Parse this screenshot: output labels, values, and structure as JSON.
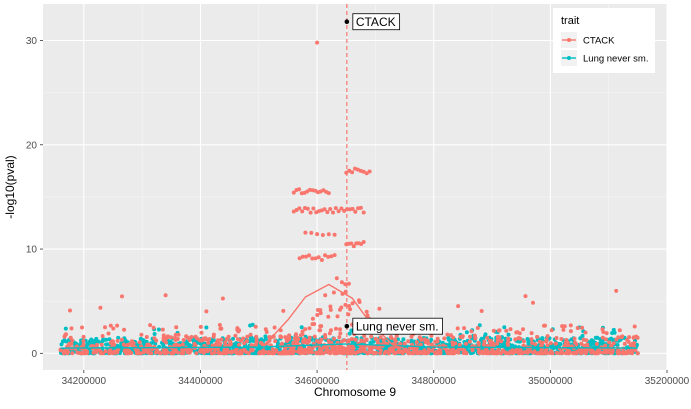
{
  "chart_data": {
    "type": "scatter",
    "xlabel": "Chromosome 9",
    "ylabel": "-log10(pval)",
    "xlim": [
      34130000,
      35200000
    ],
    "ylim": [
      -1.6,
      33.5
    ],
    "x_ticks": [
      34200000,
      34400000,
      34600000,
      34800000,
      35000000,
      35200000
    ],
    "x_tick_labels": [
      "34200000",
      "34400000",
      "34600000",
      "34800000",
      "35000000",
      "35200000"
    ],
    "y_ticks": [
      0,
      10,
      20,
      30
    ],
    "y_tick_labels": [
      "0",
      "10",
      "20",
      "30"
    ],
    "grid": true,
    "legend": {
      "title": "trait",
      "position": "top-right",
      "entries": [
        "CTACK",
        "Lung never sm."
      ]
    },
    "series": [
      {
        "name": "CTACK",
        "color": "#F8766D",
        "highlight_points": [
          [
            34600000,
            29.8
          ]
        ],
        "clusters": [
          {
            "x_range": [
              34560000,
              34620000
            ],
            "y": 15.5,
            "n": 14
          },
          {
            "x_range": [
              34650000,
              34690000
            ],
            "y": 17.5,
            "n": 9
          },
          {
            "x_range": [
              34560000,
              34680000
            ],
            "y": 13.7,
            "n": 26
          },
          {
            "x_range": [
              34570000,
              34630000
            ],
            "y": 9.2,
            "n": 12
          },
          {
            "x_range": [
              34650000,
              34680000
            ],
            "y": 10.5,
            "n": 8
          },
          {
            "x_range": [
              34580000,
              34630000
            ],
            "y": 11.5,
            "n": 6
          }
        ],
        "smooth": [
          [
            34510000,
            0.8
          ],
          [
            34550000,
            3.2
          ],
          [
            34580000,
            5.4
          ],
          [
            34620000,
            6.6
          ],
          [
            34660000,
            5.3
          ],
          [
            34690000,
            3.0
          ],
          [
            34730000,
            0.8
          ],
          [
            34760000,
            0.3
          ]
        ]
      },
      {
        "name": "Lung never sm.",
        "color": "#00BFC4",
        "smooth": [
          [
            34160000,
            0.5
          ],
          [
            34500000,
            0.6
          ],
          [
            34650000,
            0.9
          ],
          [
            34800000,
            0.6
          ],
          [
            35150000,
            0.5
          ]
        ]
      }
    ],
    "vline": {
      "x": 34651000,
      "color": "#F8766D",
      "style": "dashed"
    },
    "annotations": [
      {
        "label": "CTACK",
        "x": 34651000,
        "y": 31.8
      },
      {
        "label": "Lung never sm.",
        "x": 34651000,
        "y": 2.6
      }
    ]
  }
}
